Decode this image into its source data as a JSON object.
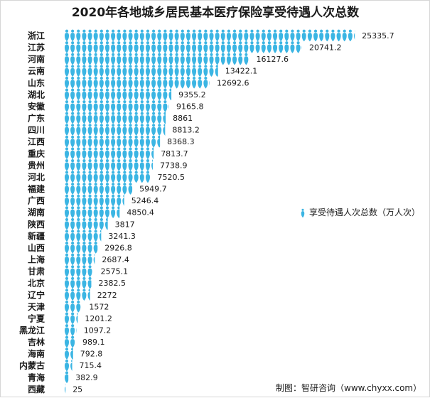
{
  "chart_data": {
    "type": "bar",
    "title": "2020年各地城乡居民基本医疗保险享受待遇人次总数",
    "categories": [
      "浙江",
      "江苏",
      "河南",
      "云南",
      "山东",
      "湖北",
      "安徽",
      "广东",
      "四川",
      "江西",
      "重庆",
      "贵州",
      "河北",
      "福建",
      "广西",
      "湖南",
      "陕西",
      "新疆",
      "山西",
      "上海",
      "甘肃",
      "北京",
      "辽宁",
      "天津",
      "宁夏",
      "黑龙江",
      "吉林",
      "海南",
      "内蒙古",
      "青海",
      "西藏"
    ],
    "value_labels": [
      "25335.7",
      "20741.2",
      "16127.6",
      "13422.1",
      "12692.6",
      "9355.2",
      "9165.8",
      "8861",
      "8813.2",
      "8368.3",
      "7813.7",
      "7738.9",
      "7520.5",
      "5949.7",
      "5246.4",
      "4850.4",
      "3817",
      "3241.3",
      "2926.8",
      "2687.4",
      "2575.1",
      "2382.5",
      "2272",
      "1572",
      "1201.2",
      "1097.2",
      "989.1",
      "792.8",
      "715.4",
      "382.9",
      "25"
    ],
    "series": [
      {
        "name": "享受待遇人次总数（万人次）",
        "values": [
          25335.7,
          20741.2,
          16127.6,
          13422.1,
          12692.6,
          9355.2,
          9165.8,
          8861,
          8813.2,
          8368.3,
          7813.7,
          7738.9,
          7520.5,
          5949.7,
          5246.4,
          4850.4,
          3817,
          3241.3,
          2926.8,
          2687.4,
          2575.1,
          2382.5,
          2272,
          1572,
          1201.2,
          1097.2,
          989.1,
          792.8,
          715.4,
          382.9,
          25
        ]
      }
    ],
    "xlim": [
      0,
      26000
    ],
    "grid": false,
    "legend_position": "right",
    "color": "#3bb5e3"
  },
  "source": "制图：智研咨询（www.chyxx.com）"
}
